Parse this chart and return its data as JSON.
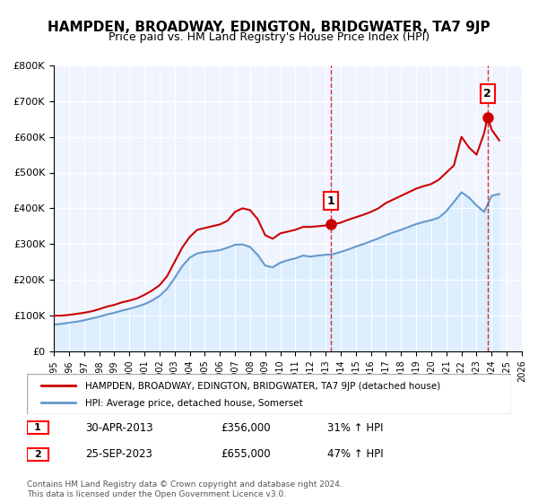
{
  "title": "HAMPDEN, BROADWAY, EDINGTON, BRIDGWATER, TA7 9JP",
  "subtitle": "Price paid vs. HM Land Registry's House Price Index (HPI)",
  "xlim": [
    1995,
    2026
  ],
  "ylim": [
    0,
    800000
  ],
  "yticks": [
    0,
    100000,
    200000,
    300000,
    400000,
    500000,
    600000,
    700000,
    800000
  ],
  "ytick_labels": [
    "£0",
    "£100K",
    "£200K",
    "£300K",
    "£400K",
    "£500K",
    "£600K",
    "£700K",
    "£800K"
  ],
  "xticks": [
    1995,
    1996,
    1997,
    1998,
    1999,
    2000,
    2001,
    2002,
    2003,
    2004,
    2005,
    2006,
    2007,
    2008,
    2009,
    2010,
    2011,
    2012,
    2013,
    2014,
    2015,
    2016,
    2017,
    2018,
    2019,
    2020,
    2021,
    2022,
    2023,
    2024,
    2025,
    2026
  ],
  "sale_color": "#cc0000",
  "hpi_color": "#6699cc",
  "hpi_fill_color": "#ddeeff",
  "bg_color": "#f0f4ff",
  "plot_bg": "#f0f4ff",
  "legend_label_sale": "HAMPDEN, BROADWAY, EDINGTON, BRIDGWATER, TA7 9JP (detached house)",
  "legend_label_hpi": "HPI: Average price, detached house, Somerset",
  "point1_x": 2013.33,
  "point1_y": 356000,
  "point1_label": "1",
  "point1_date": "30-APR-2013",
  "point1_price": "£356,000",
  "point1_hpi": "31% ↑ HPI",
  "point2_x": 2023.73,
  "point2_y": 655000,
  "point2_label": "2",
  "point2_date": "25-SEP-2023",
  "point2_price": "£655,000",
  "point2_hpi": "47% ↑ HPI",
  "footer": "Contains HM Land Registry data © Crown copyright and database right 2024.\nThis data is licensed under the Open Government Licence v3.0.",
  "sale_data_x": [
    1995.0,
    1995.5,
    1996.0,
    1996.5,
    1997.0,
    1997.5,
    1998.0,
    1998.5,
    1999.0,
    1999.5,
    2000.0,
    2000.5,
    2001.0,
    2001.5,
    2002.0,
    2002.5,
    2003.0,
    2003.5,
    2004.0,
    2004.5,
    2005.0,
    2005.5,
    2006.0,
    2006.5,
    2007.0,
    2007.5,
    2008.0,
    2008.5,
    2009.0,
    2009.5,
    2010.0,
    2010.5,
    2011.0,
    2011.5,
    2012.0,
    2012.5,
    2013.0,
    2013.33,
    2013.5,
    2014.0,
    2014.5,
    2015.0,
    2015.5,
    2016.0,
    2016.5,
    2017.0,
    2017.5,
    2018.0,
    2018.5,
    2019.0,
    2019.5,
    2020.0,
    2020.5,
    2021.0,
    2021.5,
    2022.0,
    2022.5,
    2023.0,
    2023.5,
    2023.73,
    2024.0,
    2024.5
  ],
  "sale_data_y": [
    100000,
    100000,
    102000,
    105000,
    108000,
    112000,
    118000,
    125000,
    130000,
    137000,
    142000,
    148000,
    158000,
    170000,
    185000,
    210000,
    250000,
    290000,
    320000,
    340000,
    345000,
    350000,
    355000,
    365000,
    390000,
    400000,
    395000,
    370000,
    325000,
    315000,
    330000,
    335000,
    340000,
    348000,
    348000,
    350000,
    352000,
    356000,
    355000,
    360000,
    368000,
    375000,
    382000,
    390000,
    400000,
    415000,
    425000,
    435000,
    445000,
    455000,
    462000,
    468000,
    480000,
    500000,
    520000,
    600000,
    570000,
    550000,
    610000,
    655000,
    620000,
    590000
  ],
  "hpi_data_x": [
    1995.0,
    1995.5,
    1996.0,
    1996.5,
    1997.0,
    1997.5,
    1998.0,
    1998.5,
    1999.0,
    1999.5,
    2000.0,
    2000.5,
    2001.0,
    2001.5,
    2002.0,
    2002.5,
    2003.0,
    2003.5,
    2004.0,
    2004.5,
    2005.0,
    2005.5,
    2006.0,
    2006.5,
    2007.0,
    2007.5,
    2008.0,
    2008.5,
    2009.0,
    2009.5,
    2010.0,
    2010.5,
    2011.0,
    2011.5,
    2012.0,
    2012.5,
    2013.0,
    2013.5,
    2014.0,
    2014.5,
    2015.0,
    2015.5,
    2016.0,
    2016.5,
    2017.0,
    2017.5,
    2018.0,
    2018.5,
    2019.0,
    2019.5,
    2020.0,
    2020.5,
    2021.0,
    2021.5,
    2022.0,
    2022.5,
    2023.0,
    2023.5,
    2024.0,
    2024.5
  ],
  "hpi_data_y": [
    75000,
    77000,
    80000,
    83000,
    87000,
    92000,
    97000,
    103000,
    108000,
    114000,
    119000,
    125000,
    132000,
    142000,
    155000,
    175000,
    205000,
    238000,
    262000,
    274000,
    278000,
    280000,
    283000,
    290000,
    298000,
    299000,
    292000,
    270000,
    240000,
    235000,
    248000,
    255000,
    260000,
    268000,
    265000,
    268000,
    270000,
    272000,
    278000,
    285000,
    293000,
    300000,
    308000,
    316000,
    325000,
    333000,
    340000,
    348000,
    356000,
    362000,
    367000,
    374000,
    392000,
    418000,
    445000,
    430000,
    408000,
    390000,
    435000,
    440000
  ]
}
